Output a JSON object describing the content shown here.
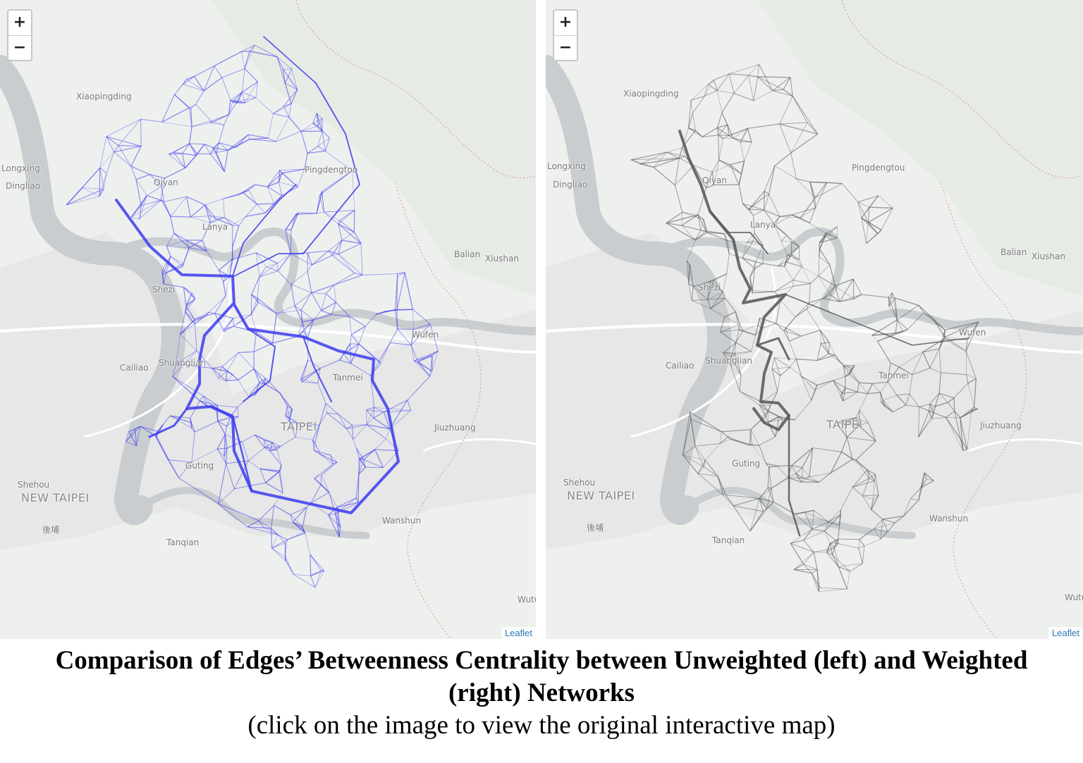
{
  "places": [
    {
      "id": "xiaopingding",
      "label": "Xiaopingding"
    },
    {
      "id": "longxing",
      "label": "Longxing"
    },
    {
      "id": "dingliao",
      "label": "Dingliao"
    },
    {
      "id": "qiyan",
      "label": "Qiyan"
    },
    {
      "id": "pingdengtou",
      "label": "Pingdengtou"
    },
    {
      "id": "lanya",
      "label": "Lanya"
    },
    {
      "id": "balian",
      "label": "Balian"
    },
    {
      "id": "xiushan",
      "label": "Xiushan"
    },
    {
      "id": "shezi",
      "label": "Shezi"
    },
    {
      "id": "wufen",
      "label": "Wufen"
    },
    {
      "id": "cailiao",
      "label": "Cailiao"
    },
    {
      "id": "shuanglian",
      "label": "Shuanglian"
    },
    {
      "id": "tanmei",
      "label": "Tanmei"
    },
    {
      "id": "taipei",
      "label": "TAIPEI"
    },
    {
      "id": "jiuzhuang",
      "label": "Jiuzhuang"
    },
    {
      "id": "guting",
      "label": "Guting"
    },
    {
      "id": "shehou",
      "label": "Shehou"
    },
    {
      "id": "newtaipei",
      "label": "NEW TAIPEI"
    },
    {
      "id": "houpu",
      "label": "後埔"
    },
    {
      "id": "tanqian",
      "label": "Tanqian"
    },
    {
      "id": "wanshun",
      "label": "Wanshun"
    },
    {
      "id": "wutu",
      "label": "Wutu"
    }
  ],
  "zoom": {
    "in_label": "+",
    "out_label": "−"
  },
  "attribution": "Leaflet",
  "panels": {
    "left": {
      "network": "Unweighted",
      "edge_color": "#3b3bf0"
    },
    "right": {
      "network": "Weighted",
      "edge_color": "#555555"
    }
  },
  "caption": {
    "title": "Comparison of Edges’ Betweenness Centrality between Unweighted (left) and Weighted (right) Networks",
    "subtitle": "(click on the image to view the original interactive map)"
  },
  "colors": {
    "river": "#c9cdd0",
    "land": "#eef0ee",
    "urban": "#e2e3e2",
    "leaflet_link": "#2a7bb8"
  }
}
